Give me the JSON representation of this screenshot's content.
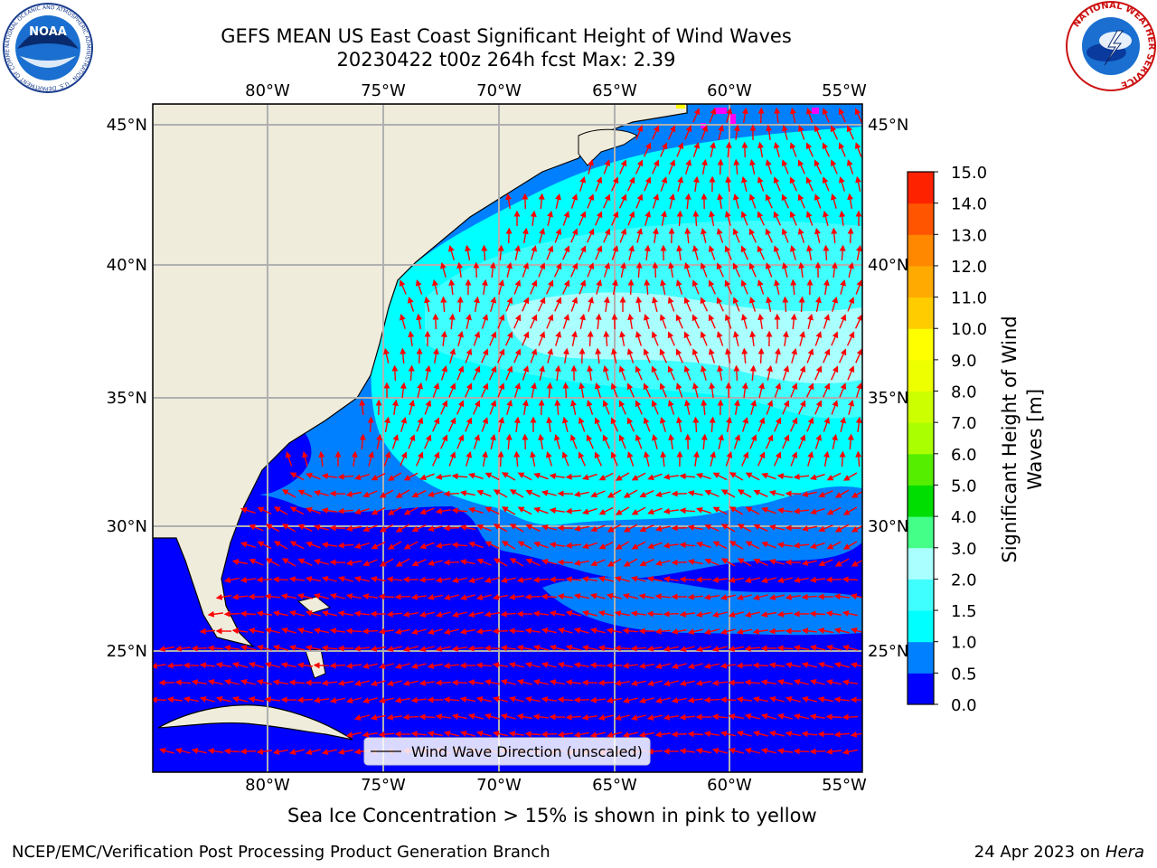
{
  "title": {
    "line1": "GEFS MEAN US East Coast Significant Height of Wind Waves",
    "line2": "20230422 t00z 264h fcst   Max: 2.39"
  },
  "map": {
    "lon_labels": [
      "80°W",
      "75°W",
      "70°W",
      "65°W",
      "60°W",
      "55°W"
    ],
    "lat_labels": [
      "45°N",
      "40°N",
      "35°N",
      "30°N",
      "25°N"
    ],
    "legend_label": "Wind Wave Direction (unscaled)",
    "arrow_color": "#ff0000",
    "land_color": "#efecdc",
    "ice_colors": [
      "#ff00ff",
      "#ffff00"
    ]
  },
  "colorbar": {
    "label": "Significant Height of Wind Waves [m]",
    "ticks": [
      "0.0",
      "0.5",
      "1.0",
      "1.5",
      "2.0",
      "3.0",
      "4.0",
      "5.0",
      "6.0",
      "7.0",
      "8.0",
      "9.0",
      "10.0",
      "11.0",
      "12.0",
      "13.0",
      "14.0",
      "15.0"
    ],
    "colors": [
      "#0000ff",
      "#0080ff",
      "#00ffff",
      "#40ffff",
      "#aaffff",
      "#44ff88",
      "#00dd00",
      "#55ee00",
      "#aaff00",
      "#ccff00",
      "#eeff00",
      "#ffff00",
      "#ffcc00",
      "#ffaa00",
      "#ff8800",
      "#ff5500",
      "#ff2200"
    ]
  },
  "notes": {
    "ice": "Sea Ice Concentration > 15% is shown in pink to yellow"
  },
  "footer": {
    "left": "NCEP/EMC/Verification Post Processing Product Generation Branch",
    "date": "24 Apr 2023 on ",
    "host": "Hera"
  },
  "logos": {
    "noaa_text": "NOAA",
    "noaa_ring": "NATIONAL OCEANIC AND ATMOSPHERIC ADMINISTRATION · U.S. DEPARTMENT OF COMMERCE",
    "nws_ring": "NATIONAL WEATHER SERVICE"
  }
}
